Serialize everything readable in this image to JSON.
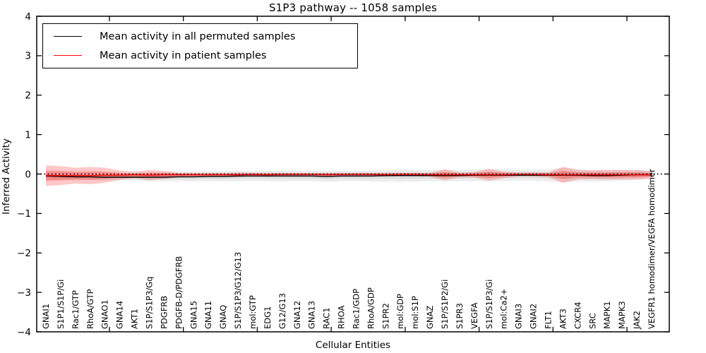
{
  "title": "S1P3 pathway -- 1058 samples",
  "chart_data": {
    "type": "area",
    "title": "S1P3 pathway -- 1058 samples",
    "xlabel": "Cellular Entities",
    "ylabel": "Inferred Activity",
    "ylim": [
      -4,
      4
    ],
    "yticks": [
      4,
      3,
      2,
      1,
      0,
      -1,
      -2,
      -3,
      -4
    ],
    "grid": false,
    "legend_position": "upper left",
    "zero_line": {
      "y": 0,
      "style": "dotted",
      "color": "#000000"
    },
    "categories": [
      "GNAI1",
      "S1P1/S1P/Gi",
      "Rac1/GTP",
      "RhoA/GTP",
      "GNAO1",
      "GNA14",
      "AKT1",
      "S1P/S1P3/Gq",
      "PDGFRB",
      "PDGFB-D/PDGFRB",
      "GNA15",
      "GNA11",
      "GNAQ",
      "S1P/S1P3/G12/G13",
      "mol:GTP",
      "EDG1",
      "G12/G13",
      "GNA12",
      "GNA13",
      "RAC1",
      "RHOA",
      "Rac1/GDP",
      "RhoA/GDP",
      "S1PR2",
      "mol:GDP",
      "mol:S1P",
      "GNAZ",
      "S1P/S1P2/Gi",
      "S1PR3",
      "VEGFA",
      "S1P/S1P3/Gi",
      "mol:Ca2+",
      "GNAI3",
      "GNAI2",
      "FLT1",
      "AKT3",
      "CXCR4",
      "SRC",
      "MAPK1",
      "MAPK3",
      "JAK2",
      "VEGFR1 homodimer/VEGFA homodimer"
    ],
    "series": [
      {
        "name": "Mean activity in all permuted samples",
        "color": "#000000",
        "band_fill": "#999999",
        "band_opacity_outer": 0.18,
        "band_opacity_inner": 0.22,
        "mean": [
          -0.05,
          -0.06,
          -0.07,
          -0.07,
          -0.08,
          -0.08,
          -0.08,
          -0.08,
          -0.08,
          -0.07,
          -0.07,
          -0.06,
          -0.06,
          -0.05,
          -0.05,
          -0.05,
          -0.05,
          -0.05,
          -0.05,
          -0.06,
          -0.05,
          -0.05,
          -0.05,
          -0.04,
          -0.04,
          -0.04,
          -0.04,
          -0.04,
          -0.04,
          -0.03,
          -0.03,
          -0.03,
          -0.03,
          -0.03,
          -0.03,
          -0.03,
          -0.03,
          -0.04,
          -0.04,
          -0.03,
          -0.02,
          -0.02
        ],
        "std": [
          0.1,
          0.1,
          0.09,
          0.09,
          0.08,
          0.08,
          0.09,
          0.1,
          0.11,
          0.11,
          0.12,
          0.12,
          0.13,
          0.13,
          0.12,
          0.13,
          0.14,
          0.13,
          0.13,
          0.14,
          0.13,
          0.13,
          0.14,
          0.15,
          0.16,
          0.15,
          0.14,
          0.15,
          0.14,
          0.15,
          0.16,
          0.15,
          0.14,
          0.14,
          0.15,
          0.19,
          0.16,
          0.15,
          0.15,
          0.14,
          0.13,
          0.1
        ]
      },
      {
        "name": "Mean activity in patient samples",
        "color": "#ff0000",
        "band_fill": "#ff2222",
        "band_opacity_outer": 0.25,
        "band_opacity_inner": 0.3,
        "mean": [
          -0.04,
          -0.04,
          -0.04,
          -0.04,
          -0.03,
          -0.03,
          -0.02,
          -0.03,
          -0.02,
          -0.02,
          -0.02,
          -0.02,
          -0.02,
          -0.02,
          -0.01,
          -0.02,
          -0.01,
          -0.01,
          -0.01,
          -0.02,
          -0.01,
          -0.01,
          -0.01,
          -0.02,
          -0.01,
          -0.01,
          -0.02,
          -0.02,
          -0.02,
          -0.02,
          -0.02,
          -0.02,
          -0.01,
          -0.01,
          -0.02,
          -0.02,
          -0.02,
          -0.02,
          -0.02,
          -0.02,
          -0.02,
          -0.02
        ],
        "std": [
          0.26,
          0.24,
          0.2,
          0.22,
          0.19,
          0.12,
          0.08,
          0.13,
          0.1,
          0.06,
          0.05,
          0.05,
          0.05,
          0.06,
          0.04,
          0.05,
          0.04,
          0.04,
          0.04,
          0.05,
          0.04,
          0.04,
          0.04,
          0.05,
          0.04,
          0.04,
          0.05,
          0.14,
          0.06,
          0.07,
          0.15,
          0.08,
          0.05,
          0.05,
          0.06,
          0.2,
          0.12,
          0.11,
          0.12,
          0.12,
          0.12,
          0.09
        ]
      }
    ]
  }
}
